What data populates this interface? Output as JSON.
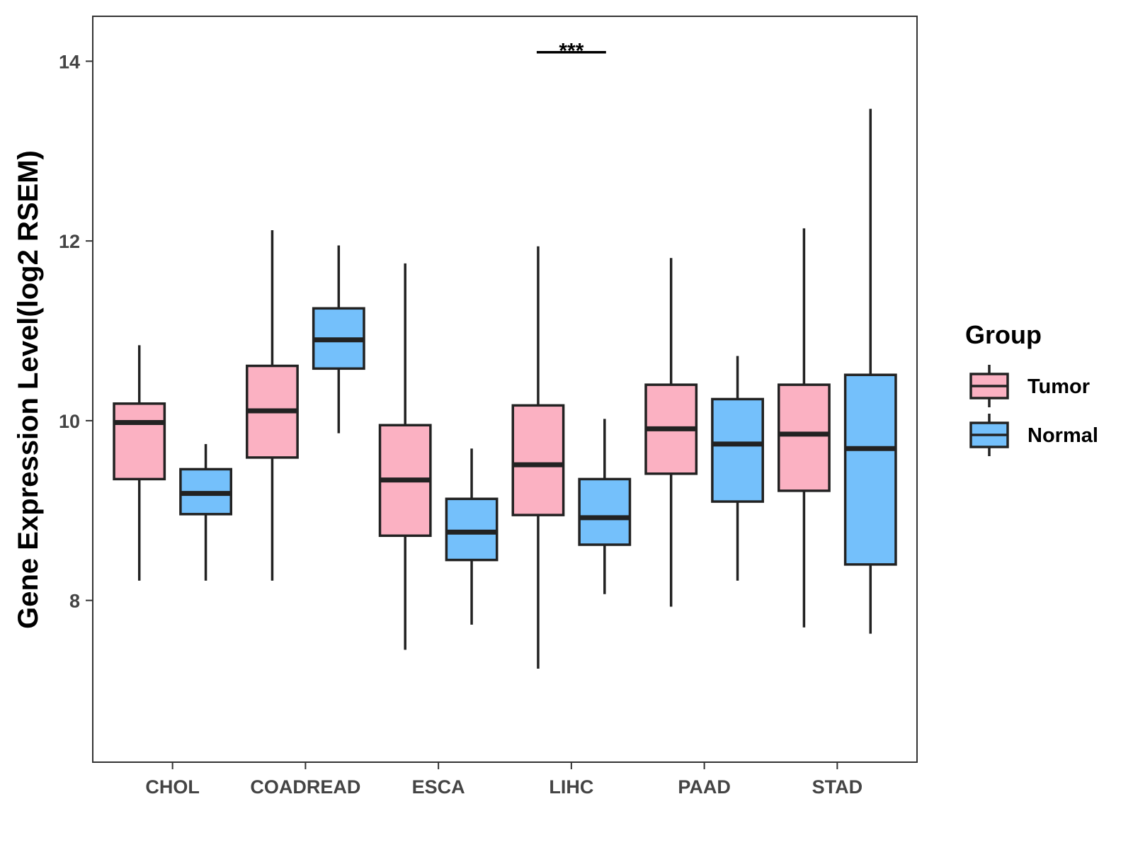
{
  "chart_data": {
    "type": "boxplot",
    "title": "",
    "xlabel": "",
    "ylabel": "Gene Expression Level(log2 RSEM)",
    "ylim": [
      6.2,
      14.5
    ],
    "yticks": [
      8,
      10,
      12,
      14
    ],
    "ytick_labels": [
      "8",
      "10",
      "12",
      "14"
    ],
    "categories": [
      "CHOL",
      "COADREAD",
      "ESCA",
      "LIHC",
      "PAAD",
      "STAD"
    ],
    "legend": {
      "title": "Group",
      "position": "right",
      "entries": [
        "Tumor",
        "Normal"
      ]
    },
    "colors": {
      "Tumor": "#FBB1C2",
      "Normal": "#74C0FB",
      "outline": "#222222"
    },
    "series": [
      {
        "name": "Tumor",
        "boxes": [
          {
            "min": 8.22,
            "q1": 9.35,
            "median": 9.98,
            "q3": 10.19,
            "max": 10.84
          },
          {
            "min": 8.22,
            "q1": 9.59,
            "median": 10.11,
            "q3": 10.61,
            "max": 12.12
          },
          {
            "min": 7.45,
            "q1": 8.72,
            "median": 9.34,
            "q3": 9.95,
            "max": 11.75
          },
          {
            "min": 7.24,
            "q1": 8.95,
            "median": 9.51,
            "q3": 10.17,
            "max": 11.94
          },
          {
            "min": 7.93,
            "q1": 9.41,
            "median": 9.91,
            "q3": 10.4,
            "max": 11.81
          },
          {
            "min": 7.7,
            "q1": 9.22,
            "median": 9.85,
            "q3": 10.4,
            "max": 12.14
          }
        ]
      },
      {
        "name": "Normal",
        "boxes": [
          {
            "min": 8.22,
            "q1": 8.96,
            "median": 9.19,
            "q3": 9.46,
            "max": 9.74
          },
          {
            "min": 9.86,
            "q1": 10.58,
            "median": 10.9,
            "q3": 11.25,
            "max": 11.95
          },
          {
            "min": 7.73,
            "q1": 8.45,
            "median": 8.76,
            "q3": 9.13,
            "max": 9.69
          },
          {
            "min": 8.07,
            "q1": 8.62,
            "median": 8.92,
            "q3": 9.35,
            "max": 10.02
          },
          {
            "min": 8.22,
            "q1": 9.1,
            "median": 9.74,
            "q3": 10.24,
            "max": 10.72
          },
          {
            "min": 7.63,
            "q1": 8.4,
            "median": 9.69,
            "q3": 10.51,
            "max": 13.47
          }
        ]
      }
    ],
    "annotations": [
      {
        "category": "LIHC",
        "text": "***",
        "y": 14.1
      }
    ]
  }
}
